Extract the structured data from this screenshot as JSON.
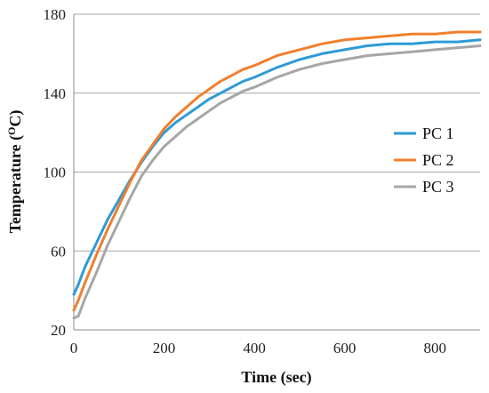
{
  "chart_data": {
    "type": "line",
    "title": "",
    "xlabel": "Time (sec)",
    "ylabel": {
      "prefix": "Temperature (",
      "sup": "O",
      "suffix": "C)"
    },
    "xlim": [
      0,
      900
    ],
    "ylim": [
      20,
      180
    ],
    "xticks": [
      0,
      200,
      400,
      600,
      800
    ],
    "yticks": [
      20,
      60,
      100,
      140,
      180
    ],
    "grid": "horizontal",
    "legend_position": "right",
    "series": [
      {
        "name": "PC 1",
        "color": "#2E9AD6",
        "x": [
          0,
          10,
          25,
          50,
          75,
          100,
          125,
          150,
          175,
          200,
          225,
          250,
          275,
          300,
          325,
          350,
          375,
          400,
          450,
          500,
          550,
          600,
          650,
          700,
          750,
          800,
          850,
          900
        ],
        "y": [
          38,
          43,
          52,
          64,
          76,
          86,
          96,
          105,
          113,
          120,
          125,
          129,
          133,
          137,
          140,
          143,
          146,
          148,
          153,
          157,
          160,
          162,
          164,
          165,
          165,
          166,
          166,
          167
        ]
      },
      {
        "name": "PC 2",
        "color": "#F07F2E",
        "x": [
          0,
          10,
          25,
          50,
          75,
          100,
          125,
          150,
          175,
          200,
          225,
          250,
          275,
          300,
          325,
          350,
          375,
          400,
          450,
          500,
          550,
          600,
          650,
          700,
          750,
          800,
          850,
          900
        ],
        "y": [
          30,
          35,
          44,
          58,
          71,
          83,
          95,
          106,
          114,
          122,
          128,
          133,
          138,
          142,
          146,
          149,
          152,
          154,
          159,
          162,
          165,
          167,
          168,
          169,
          170,
          170,
          171,
          171
        ]
      },
      {
        "name": "PC 3",
        "color": "#A6A6A6",
        "x": [
          0,
          10,
          25,
          50,
          75,
          100,
          125,
          150,
          175,
          200,
          225,
          250,
          275,
          300,
          325,
          350,
          375,
          400,
          450,
          500,
          550,
          600,
          650,
          700,
          750,
          800,
          850,
          900
        ],
        "y": [
          26,
          27,
          36,
          49,
          63,
          75,
          87,
          98,
          106,
          113,
          118,
          123,
          127,
          131,
          135,
          138,
          141,
          143,
          148,
          152,
          155,
          157,
          159,
          160,
          161,
          162,
          163,
          164
        ]
      }
    ]
  }
}
